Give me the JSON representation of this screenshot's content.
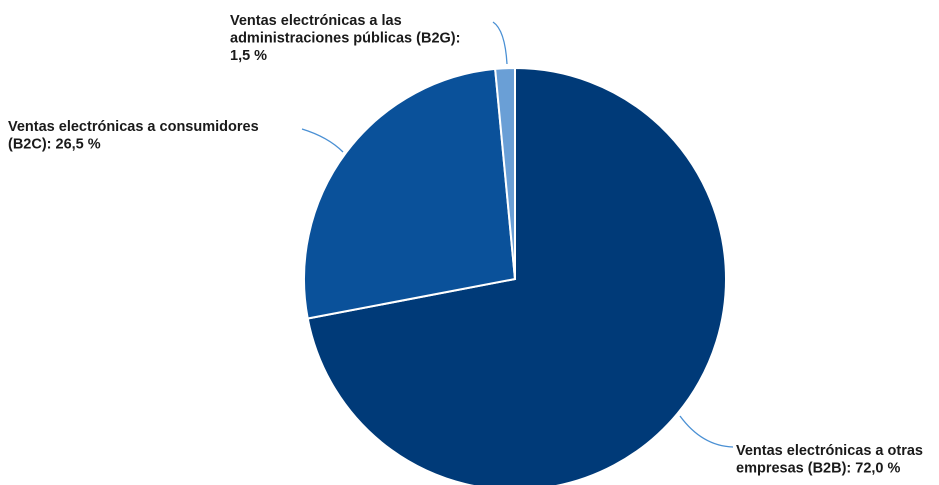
{
  "chart_data": {
    "type": "pie",
    "title": "",
    "slices": [
      {
        "name": "Ventas electrónicas a otras empresas (B2B)",
        "value": 72.0,
        "color": "#003a78",
        "label_lines": [
          "Ventas electrónicas a otras",
          "empresas (B2B): 72,0 %"
        ]
      },
      {
        "name": "Ventas electrónicas a consumidores (B2C)",
        "value": 26.5,
        "color": "#0a519a",
        "label_lines": [
          "Ventas electrónicas a consumidores",
          "(B2C): 26,5 %"
        ]
      },
      {
        "name": "Ventas electrónicas a las administraciones públicas (B2G)",
        "value": 1.5,
        "color": "#6a9fd6",
        "label_lines": [
          "Ventas electrónicas a las",
          "administraciones públicas (B2G):",
          "1,5 %"
        ]
      }
    ],
    "leader_line_color": "#4a90d4"
  }
}
